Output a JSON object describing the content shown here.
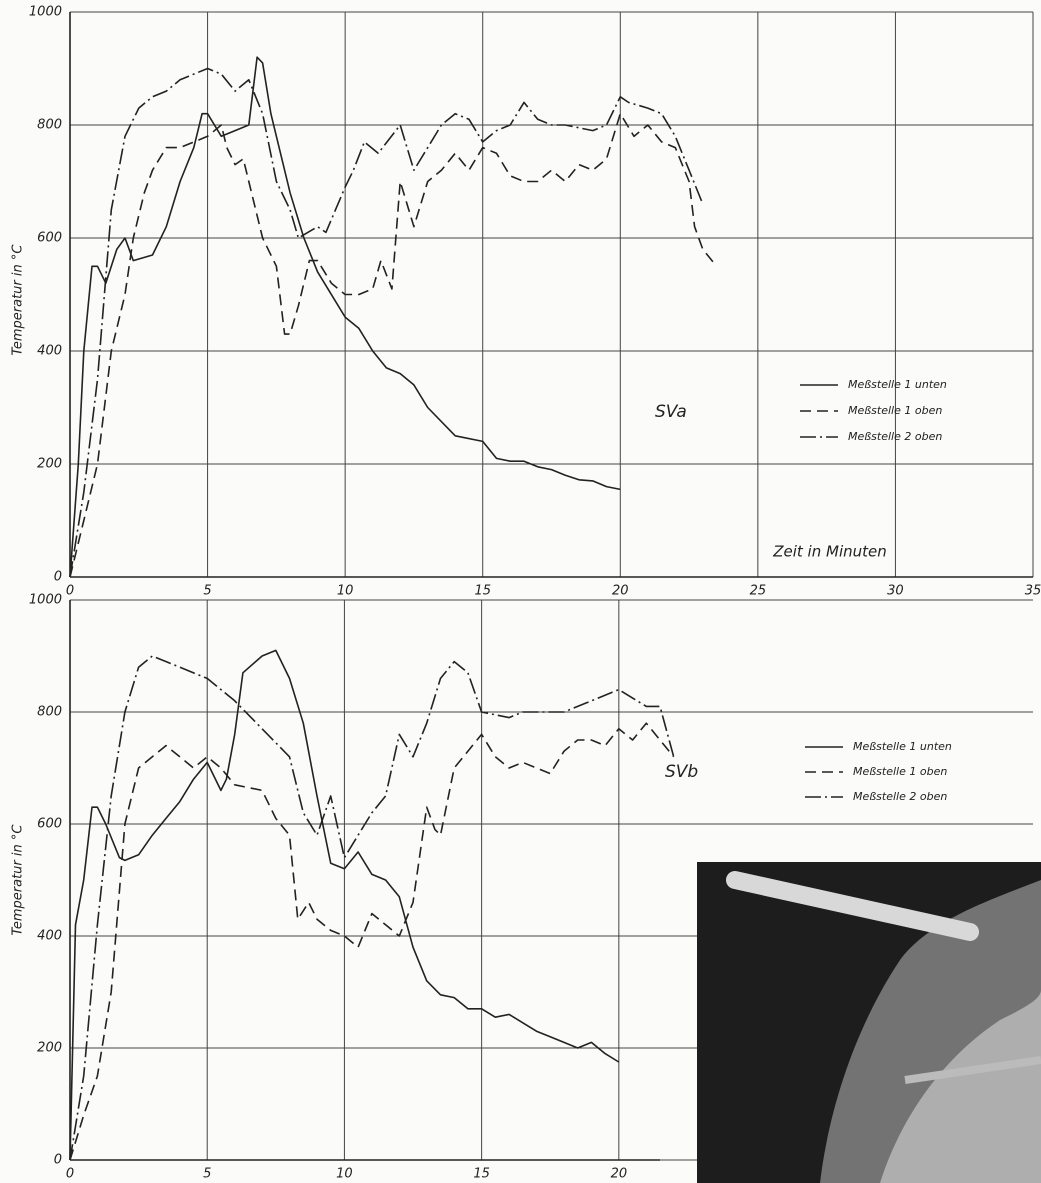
{
  "chart_data": [
    {
      "type": "line",
      "annotation": "SVa",
      "xlabel": "Zeit in Minuten",
      "ylabel": "Temperatur in °C",
      "xlim": [
        0,
        35
      ],
      "ylim": [
        0,
        1000
      ],
      "xticks": [
        0,
        5,
        10,
        15,
        20,
        25,
        30,
        35
      ],
      "yticks": [
        0,
        200,
        400,
        600,
        800,
        1000
      ],
      "grid": true,
      "series": [
        {
          "name": "Meßstelle 1 unten",
          "color": "#222222",
          "line_style": "solid",
          "x": [
            0,
            0.3,
            0.5,
            0.8,
            1.0,
            1.3,
            1.7,
            2.0,
            2.3,
            3,
            3.5,
            4,
            4.5,
            4.8,
            5.0,
            5.5,
            6,
            6.5,
            6.8,
            7.0,
            7.3,
            8,
            8.5,
            9,
            10,
            10.5,
            11,
            11.5,
            12,
            12.5,
            13,
            14,
            15,
            15.5,
            16,
            16.5,
            17,
            17.5,
            18,
            18.5,
            19,
            19.5,
            20
          ],
          "values": [
            0,
            200,
            400,
            550,
            550,
            520,
            580,
            600,
            560,
            570,
            620,
            700,
            760,
            820,
            820,
            780,
            790,
            800,
            920,
            910,
            820,
            680,
            600,
            540,
            460,
            440,
            400,
            370,
            360,
            340,
            300,
            250,
            240,
            210,
            205,
            205,
            195,
            190,
            180,
            172,
            170,
            160,
            155
          ]
        },
        {
          "name": "Meßstelle 1 oben",
          "color": "#222222",
          "line_style": "dashed",
          "x": [
            0,
            0.5,
            1,
            1.5,
            2,
            2.3,
            2.7,
            3,
            3.5,
            4,
            5,
            5.5,
            5.7,
            6,
            6.3,
            6.5,
            7,
            7.5,
            7.8,
            8,
            8.3,
            8.7,
            9,
            9.5,
            10,
            10.5,
            11,
            11.3,
            11.7,
            12,
            12.5,
            13,
            13.5,
            14,
            14.5,
            15,
            15.5,
            16,
            16.5,
            17,
            17.5,
            18,
            18.5,
            19,
            19.5,
            20,
            20.5,
            21,
            21.5,
            22,
            22.5,
            22.7,
            23,
            23.5
          ],
          "values": [
            0,
            100,
            200,
            400,
            500,
            600,
            680,
            720,
            760,
            760,
            780,
            800,
            760,
            730,
            740,
            700,
            600,
            550,
            430,
            430,
            480,
            560,
            560,
            520,
            500,
            500,
            510,
            560,
            510,
            700,
            620,
            700,
            720,
            750,
            720,
            760,
            750,
            710,
            700,
            700,
            720,
            700,
            730,
            720,
            740,
            820,
            780,
            800,
            770,
            760,
            700,
            620,
            580,
            550
          ]
        },
        {
          "name": "Meßstelle 2 oben",
          "color": "#222222",
          "line_style": "dashdot",
          "x": [
            0,
            0.5,
            1,
            1.5,
            2,
            2.5,
            3,
            3.5,
            4,
            4.5,
            5,
            5.5,
            6,
            6.5,
            7,
            7.5,
            8,
            8.3,
            9,
            9.3,
            10,
            10.3,
            10.7,
            11.2,
            12,
            12.5,
            13,
            13.5,
            14,
            14.5,
            15,
            15.5,
            16,
            16.5,
            17,
            17.5,
            18,
            19,
            19.5,
            20,
            20.3,
            21,
            21.5,
            22,
            22.5,
            23
          ],
          "values": [
            0,
            150,
            350,
            650,
            780,
            830,
            850,
            860,
            880,
            890,
            900,
            890,
            860,
            880,
            820,
            700,
            650,
            600,
            620,
            610,
            690,
            720,
            770,
            750,
            800,
            720,
            760,
            800,
            820,
            810,
            770,
            790,
            800,
            840,
            810,
            800,
            800,
            790,
            800,
            850,
            840,
            830,
            820,
            780,
            720,
            660
          ]
        }
      ]
    },
    {
      "type": "line",
      "annotation": "SVb",
      "ylabel": "Temperatur in °C",
      "xlim": [
        0,
        21.5
      ],
      "ylim": [
        0,
        1000
      ],
      "xticks": [
        0,
        5,
        10,
        15,
        20
      ],
      "yticks": [
        0,
        200,
        400,
        600,
        800,
        1000
      ],
      "grid": true,
      "series": [
        {
          "name": "Meßstelle 1 unten",
          "color": "#222222",
          "line_style": "solid",
          "x": [
            0,
            0.2,
            0.5,
            0.8,
            1,
            1.3,
            1.8,
            2,
            2.5,
            3,
            3.5,
            4,
            4.5,
            5,
            5.5,
            5.7,
            6,
            6.3,
            7,
            7.5,
            8,
            8.5,
            9,
            9.5,
            10,
            10.5,
            11,
            11.5,
            12,
            12.5,
            13,
            13.5,
            14,
            14.5,
            15,
            15.5,
            16,
            16.5,
            17,
            17.5,
            18,
            18.5,
            19,
            19.5,
            20
          ],
          "values": [
            0,
            420,
            500,
            630,
            630,
            600,
            540,
            535,
            545,
            580,
            610,
            640,
            680,
            710,
            660,
            680,
            760,
            870,
            900,
            910,
            860,
            780,
            650,
            530,
            520,
            550,
            510,
            500,
            470,
            380,
            320,
            295,
            290,
            270,
            270,
            255,
            260,
            245,
            230,
            220,
            210,
            200,
            210,
            190,
            175
          ]
        },
        {
          "name": "Meßstelle 1 oben",
          "color": "#222222",
          "line_style": "dashed",
          "x": [
            0,
            0.5,
            1,
            1.5,
            2,
            2.5,
            3,
            3.5,
            4,
            4.5,
            5,
            5.5,
            6,
            7,
            7.5,
            8,
            8.3,
            8.7,
            9,
            9.5,
            10,
            10.5,
            11,
            11.5,
            12,
            12.5,
            13,
            13.3,
            13.5,
            14,
            15,
            15.5,
            16,
            16.5,
            17,
            17.5,
            18,
            18.5,
            19,
            19.5,
            20,
            20.5,
            21,
            21.5,
            22
          ],
          "values": [
            0,
            80,
            150,
            300,
            600,
            700,
            720,
            740,
            720,
            700,
            720,
            700,
            670,
            660,
            610,
            580,
            430,
            460,
            430,
            410,
            400,
            380,
            440,
            420,
            400,
            460,
            630,
            590,
            580,
            700,
            760,
            720,
            700,
            710,
            700,
            690,
            730,
            750,
            750,
            740,
            770,
            750,
            780,
            750,
            720
          ]
        },
        {
          "name": "Meßstelle 2 oben",
          "color": "#222222",
          "line_style": "dashdot",
          "x": [
            0,
            0.5,
            1,
            1.5,
            2,
            2.5,
            3,
            4,
            5,
            6,
            7,
            8,
            8.5,
            9,
            9.5,
            10,
            10.5,
            11,
            11.5,
            12,
            12.5,
            13,
            13.5,
            14,
            14.5,
            15,
            16,
            16.5,
            17,
            18,
            18.5,
            19,
            20,
            21,
            21.5,
            22
          ],
          "values": [
            0,
            150,
            420,
            650,
            800,
            880,
            900,
            880,
            860,
            820,
            770,
            720,
            620,
            580,
            650,
            540,
            580,
            620,
            650,
            760,
            720,
            780,
            860,
            890,
            870,
            800,
            790,
            800,
            800,
            800,
            810,
            820,
            840,
            810,
            810,
            720
          ]
        }
      ]
    }
  ]
}
